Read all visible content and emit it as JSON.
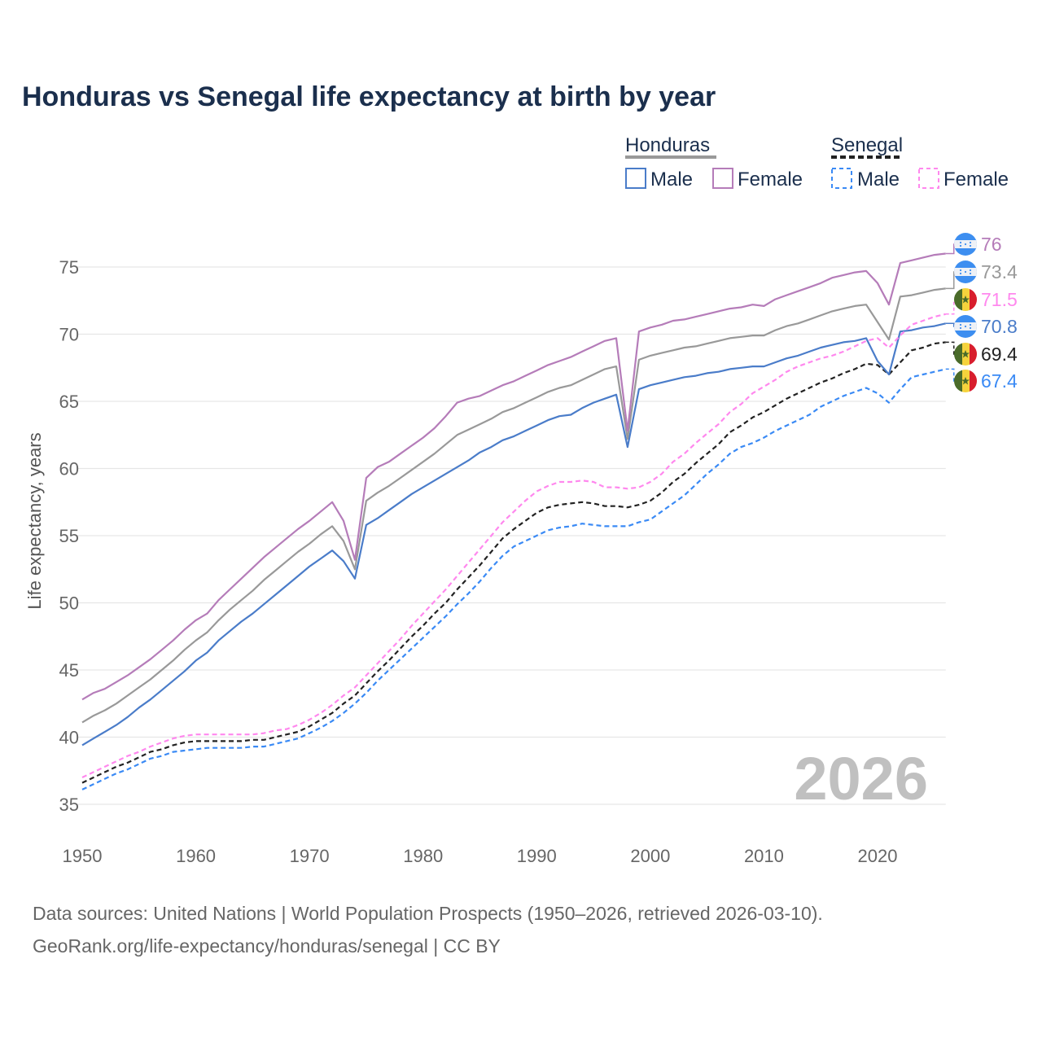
{
  "chart_data": {
    "type": "line",
    "title": "Honduras vs Senegal life expectancy at birth by year",
    "ylabel": "Life expectancy, years",
    "xlabel": "",
    "xlim": [
      1950,
      2026
    ],
    "ylim": [
      33,
      77
    ],
    "x_ticks": [
      1950,
      1960,
      1970,
      1980,
      1990,
      2000,
      2010,
      2020
    ],
    "y_ticks": [
      35,
      40,
      45,
      50,
      55,
      60,
      65,
      70,
      75
    ],
    "grid": true,
    "year_mark": "2026",
    "legend": {
      "placement": "top-right",
      "groups": [
        {
          "label": "Honduras",
          "style": "solid",
          "color": "#999999",
          "items": [
            {
              "label": "Male",
              "color": "#4a7cc9"
            },
            {
              "label": "Female",
              "color": "#b57cb9"
            }
          ]
        },
        {
          "label": "Senegal",
          "style": "dashed",
          "color": "#222222",
          "items": [
            {
              "label": "Male",
              "color": "#3a8af5"
            },
            {
              "label": "Female",
              "color": "#ff88ee"
            }
          ]
        }
      ]
    },
    "series": [
      {
        "name": "Honduras Female",
        "country": "honduras",
        "color": "#b57cb9",
        "dashed": false,
        "end_label": "76",
        "values": [
          42.8,
          43.3,
          43.6,
          44.1,
          44.6,
          45.2,
          45.8,
          46.5,
          47.2,
          48.0,
          48.7,
          49.2,
          50.2,
          51.0,
          51.8,
          52.6,
          53.4,
          54.1,
          54.8,
          55.5,
          56.1,
          56.8,
          57.5,
          56.1,
          53.2,
          59.3,
          60.1,
          60.5,
          61.1,
          61.7,
          62.3,
          63.0,
          63.9,
          64.9,
          65.2,
          65.4,
          65.8,
          66.2,
          66.5,
          66.9,
          67.3,
          67.7,
          68.0,
          68.3,
          68.7,
          69.1,
          69.5,
          69.7,
          62.8,
          70.2,
          70.5,
          70.7,
          71.0,
          71.1,
          71.3,
          71.5,
          71.7,
          71.9,
          72.0,
          72.2,
          72.1,
          72.6,
          72.9,
          73.2,
          73.5,
          73.8,
          74.2,
          74.4,
          74.6,
          74.7,
          73.8,
          72.2,
          75.3,
          75.5,
          75.7,
          75.9,
          76.0
        ]
      },
      {
        "name": "Honduras Total",
        "country": "honduras",
        "color": "#999999",
        "dashed": false,
        "end_label": "73.4",
        "values": [
          41.1,
          41.6,
          42.0,
          42.5,
          43.1,
          43.7,
          44.3,
          45.0,
          45.7,
          46.5,
          47.2,
          47.8,
          48.7,
          49.5,
          50.2,
          50.9,
          51.7,
          52.4,
          53.1,
          53.8,
          54.4,
          55.1,
          55.7,
          54.6,
          52.5,
          57.6,
          58.2,
          58.7,
          59.3,
          59.9,
          60.5,
          61.1,
          61.8,
          62.5,
          62.9,
          63.3,
          63.7,
          64.2,
          64.5,
          64.9,
          65.3,
          65.7,
          66.0,
          66.2,
          66.6,
          67.0,
          67.4,
          67.6,
          62.2,
          68.1,
          68.4,
          68.6,
          68.8,
          69.0,
          69.1,
          69.3,
          69.5,
          69.7,
          69.8,
          69.9,
          69.9,
          70.3,
          70.6,
          70.8,
          71.1,
          71.4,
          71.7,
          71.9,
          72.1,
          72.2,
          70.9,
          69.6,
          72.8,
          72.9,
          73.1,
          73.3,
          73.4
        ]
      },
      {
        "name": "Senegal Female",
        "country": "senegal",
        "color": "#ff88ee",
        "dashed": true,
        "end_label": "71.5",
        "values": [
          37.0,
          37.4,
          37.8,
          38.2,
          38.6,
          38.9,
          39.3,
          39.6,
          39.9,
          40.1,
          40.2,
          40.2,
          40.2,
          40.2,
          40.2,
          40.2,
          40.3,
          40.5,
          40.6,
          40.9,
          41.3,
          41.8,
          42.4,
          43.1,
          43.7,
          44.6,
          45.5,
          46.4,
          47.3,
          48.3,
          49.2,
          50.1,
          51.0,
          52.0,
          53.0,
          54.0,
          55.0,
          56.0,
          56.8,
          57.6,
          58.3,
          58.7,
          59.0,
          59.0,
          59.1,
          59.0,
          58.6,
          58.6,
          58.5,
          58.6,
          59.0,
          59.6,
          60.5,
          61.1,
          61.9,
          62.6,
          63.3,
          64.2,
          64.8,
          65.6,
          66.1,
          66.6,
          67.2,
          67.6,
          67.9,
          68.2,
          68.4,
          68.7,
          69.1,
          69.5,
          69.7,
          69.0,
          69.9,
          70.7,
          71.0,
          71.3,
          71.5
        ]
      },
      {
        "name": "Honduras Male",
        "country": "honduras",
        "color": "#4a7cc9",
        "dashed": false,
        "end_label": "70.8",
        "values": [
          39.4,
          39.9,
          40.4,
          40.9,
          41.5,
          42.2,
          42.8,
          43.5,
          44.2,
          44.9,
          45.7,
          46.3,
          47.2,
          47.9,
          48.6,
          49.2,
          49.9,
          50.6,
          51.3,
          52.0,
          52.7,
          53.3,
          53.9,
          53.1,
          51.8,
          55.8,
          56.3,
          56.9,
          57.5,
          58.1,
          58.6,
          59.1,
          59.6,
          60.1,
          60.6,
          61.2,
          61.6,
          62.1,
          62.4,
          62.8,
          63.2,
          63.6,
          63.9,
          64.0,
          64.5,
          64.9,
          65.2,
          65.5,
          61.6,
          65.9,
          66.2,
          66.4,
          66.6,
          66.8,
          66.9,
          67.1,
          67.2,
          67.4,
          67.5,
          67.6,
          67.6,
          67.9,
          68.2,
          68.4,
          68.7,
          69.0,
          69.2,
          69.4,
          69.5,
          69.7,
          68.0,
          67.0,
          70.2,
          70.3,
          70.5,
          70.6,
          70.8
        ]
      },
      {
        "name": "Senegal Total",
        "country": "senegal",
        "color": "#222222",
        "dashed": true,
        "end_label": "69.4",
        "values": [
          36.6,
          37.0,
          37.4,
          37.8,
          38.1,
          38.5,
          38.9,
          39.1,
          39.4,
          39.6,
          39.7,
          39.7,
          39.7,
          39.7,
          39.7,
          39.8,
          39.8,
          40.0,
          40.2,
          40.4,
          40.8,
          41.3,
          41.8,
          42.5,
          43.1,
          44.0,
          44.9,
          45.7,
          46.6,
          47.5,
          48.3,
          49.2,
          50.0,
          51.0,
          51.9,
          52.8,
          53.8,
          54.8,
          55.5,
          56.1,
          56.7,
          57.1,
          57.3,
          57.4,
          57.5,
          57.4,
          57.2,
          57.2,
          57.1,
          57.3,
          57.6,
          58.2,
          59.0,
          59.6,
          60.4,
          61.1,
          61.8,
          62.7,
          63.2,
          63.8,
          64.2,
          64.7,
          65.2,
          65.6,
          66.0,
          66.4,
          66.7,
          67.1,
          67.4,
          67.8,
          67.7,
          67.0,
          67.9,
          68.8,
          69.0,
          69.3,
          69.4
        ]
      },
      {
        "name": "Senegal Male",
        "country": "senegal",
        "color": "#3a8af5",
        "dashed": true,
        "end_label": "67.4",
        "values": [
          36.1,
          36.5,
          36.9,
          37.3,
          37.6,
          38.0,
          38.4,
          38.6,
          38.9,
          39.0,
          39.1,
          39.2,
          39.2,
          39.2,
          39.2,
          39.3,
          39.3,
          39.5,
          39.7,
          39.9,
          40.3,
          40.7,
          41.2,
          41.8,
          42.5,
          43.3,
          44.2,
          45.0,
          45.8,
          46.6,
          47.4,
          48.2,
          49.0,
          49.9,
          50.7,
          51.6,
          52.6,
          53.5,
          54.2,
          54.6,
          55.0,
          55.4,
          55.6,
          55.7,
          55.9,
          55.8,
          55.7,
          55.7,
          55.7,
          56.0,
          56.2,
          56.8,
          57.4,
          58.0,
          58.8,
          59.6,
          60.3,
          61.1,
          61.6,
          61.9,
          62.3,
          62.8,
          63.2,
          63.6,
          64.0,
          64.6,
          65.0,
          65.4,
          65.7,
          66.0,
          65.6,
          64.9,
          65.9,
          66.8,
          67.0,
          67.2,
          67.4
        ]
      }
    ]
  },
  "footer": {
    "line1": "Data sources: United Nations | World Population Prospects (1950–2026, retrieved 2026-03-10).",
    "line2": "GeoRank.org/life-expectancy/honduras/senegal | CC BY"
  }
}
